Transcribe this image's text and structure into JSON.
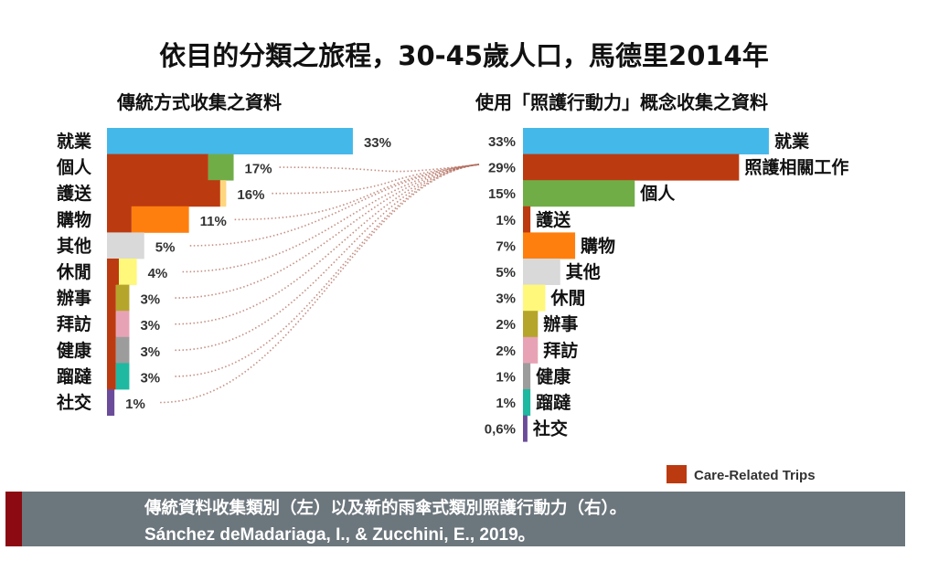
{
  "title": "依目的分類之旅程，30-45歲人口，馬德里2014年",
  "left_subtitle": "傳統方式收集之資料",
  "right_subtitle": "使用「照護行動力」概念收集之資料",
  "legend": {
    "label": "Care-Related Trips",
    "color": "#bc3a10"
  },
  "caption": {
    "line1": "傳統資料收集類別（左）以及新的雨傘式類別照護行動力（右）。",
    "line2": "Sánchez deMadariaga, I., & Zucchini, E., 2019。"
  },
  "chart_data": [
    {
      "type": "bar",
      "orientation": "horizontal",
      "title": "傳統方式收集之資料",
      "categories": [
        "就業",
        "個人",
        "護送",
        "購物",
        "其他",
        "休閒",
        "辦事",
        "拜訪",
        "健康",
        "蹓躂",
        "社交"
      ],
      "values": [
        33,
        17,
        16,
        11,
        5,
        4,
        3,
        3,
        3,
        3,
        1
      ],
      "value_labels": [
        "33%",
        "17%",
        "16%",
        "11%",
        "5%",
        "4%",
        "3%",
        "3%",
        "3%",
        "3%",
        "1%"
      ],
      "care_related_share": [
        0,
        0.8,
        0.95,
        0.3,
        0,
        0.4,
        0.4,
        0.4,
        0.4,
        0.4,
        0
      ],
      "colors": [
        "#45b8ea",
        "#70ad47",
        "#fdd67e",
        "#ff7f0e",
        "#d9d9d9",
        "#fff87a",
        "#b5a52b",
        "#e7a3b5",
        "#9c9c9c",
        "#1eb9a0",
        "#6b4c9a"
      ]
    },
    {
      "type": "bar",
      "orientation": "horizontal",
      "title": "使用「照護行動力」概念收集之資料",
      "categories": [
        "就業",
        "照護相關工作",
        "個人",
        "護送",
        "購物",
        "其他",
        "休閒",
        "辦事",
        "拜訪",
        "健康",
        "蹓躂",
        "社交"
      ],
      "values": [
        33,
        29,
        15,
        1,
        7,
        5,
        3,
        2,
        2,
        1,
        1,
        0.6
      ],
      "value_labels": [
        "33%",
        "29%",
        "15%",
        "1%",
        "7%",
        "5%",
        "3%",
        "2%",
        "2%",
        "1%",
        "1%",
        "0,6%"
      ],
      "colors": [
        "#45b8ea",
        "#bc3a10",
        "#70ad47",
        "#bc3a10",
        "#ff7f0e",
        "#d9d9d9",
        "#fff87a",
        "#b5a52b",
        "#e7a3b5",
        "#9c9c9c",
        "#1eb9a0",
        "#6b4c9a"
      ]
    }
  ]
}
